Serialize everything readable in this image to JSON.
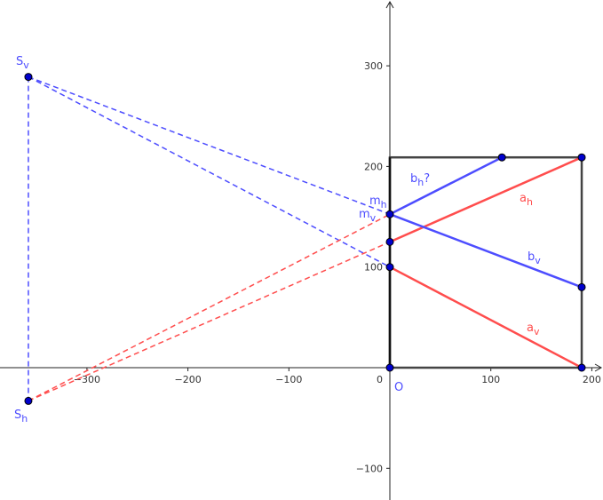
{
  "axes": {
    "x_ticks": [
      -300,
      -200,
      -100,
      100,
      200
    ],
    "y_ticks": [
      -100,
      100,
      200,
      300
    ],
    "origin_label": "0",
    "origin_point_label": "O",
    "xlim": [
      -385,
      210
    ],
    "ylim": [
      -130,
      365
    ]
  },
  "colors": {
    "red": "#ff4d4d",
    "blue": "#4d4dff",
    "box": "#444444",
    "point": "#0000cc"
  },
  "points": [
    {
      "id": "Sv",
      "x": -358,
      "y": 289
    },
    {
      "id": "Sh",
      "x": -358,
      "y": -33
    },
    {
      "id": "O",
      "x": 0,
      "y": 0
    },
    {
      "id": "A",
      "x": 190,
      "y": 0
    },
    {
      "id": "B",
      "x": 190,
      "y": 209
    },
    {
      "id": "T",
      "x": 111,
      "y": 209
    },
    {
      "id": "R",
      "x": 190,
      "y": 80
    },
    {
      "id": "M",
      "x": 0,
      "y": 152.5
    },
    {
      "id": "P125",
      "x": 0,
      "y": 125
    },
    {
      "id": "P100",
      "x": 0,
      "y": 100
    }
  ],
  "box": {
    "x0": 0,
    "y0": 0,
    "x1": 190,
    "y1": 209
  },
  "segments": [
    {
      "name": "a_v",
      "from": "P100",
      "to": "A",
      "color": "red",
      "dashed": false
    },
    {
      "name": "a_h",
      "from": "P125",
      "to": "B",
      "color": "red",
      "dashed": false
    },
    {
      "name": "b_v",
      "from": "M",
      "to": "R",
      "color": "blue",
      "dashed": false
    },
    {
      "name": "b_h",
      "from": "M",
      "to": "T",
      "color": "blue",
      "dashed": false
    },
    {
      "name": "sv-m",
      "from": "Sv",
      "to": "M",
      "color": "blue",
      "dashed": true
    },
    {
      "name": "sv-p100",
      "from": "Sv",
      "to": "P100",
      "color": "blue",
      "dashed": true
    },
    {
      "name": "sh-m",
      "from": "Sh",
      "to": "M",
      "color": "red",
      "dashed": true
    },
    {
      "name": "sh-p125",
      "from": "Sh",
      "to": "P125",
      "color": "red",
      "dashed": true
    },
    {
      "name": "sv-sh",
      "from": "Sv",
      "to": "Sh",
      "color": "blue",
      "dashed": true
    }
  ],
  "labels": {
    "Sv": {
      "main": "S",
      "sub": "v",
      "color": "blue"
    },
    "Sh": {
      "main": "S",
      "sub": "h",
      "color": "blue"
    },
    "mh": {
      "main": "m",
      "sub": "h",
      "color": "blue"
    },
    "mv": {
      "main": "m",
      "sub": "v",
      "color": "blue"
    },
    "bh": {
      "main": "b",
      "sub": "h",
      "suffix": "?",
      "color": "blue"
    },
    "ah": {
      "main": "a",
      "sub": "h",
      "color": "red"
    },
    "bv": {
      "main": "b",
      "sub": "v",
      "color": "blue"
    },
    "av": {
      "main": "a",
      "sub": "v",
      "color": "red"
    }
  }
}
